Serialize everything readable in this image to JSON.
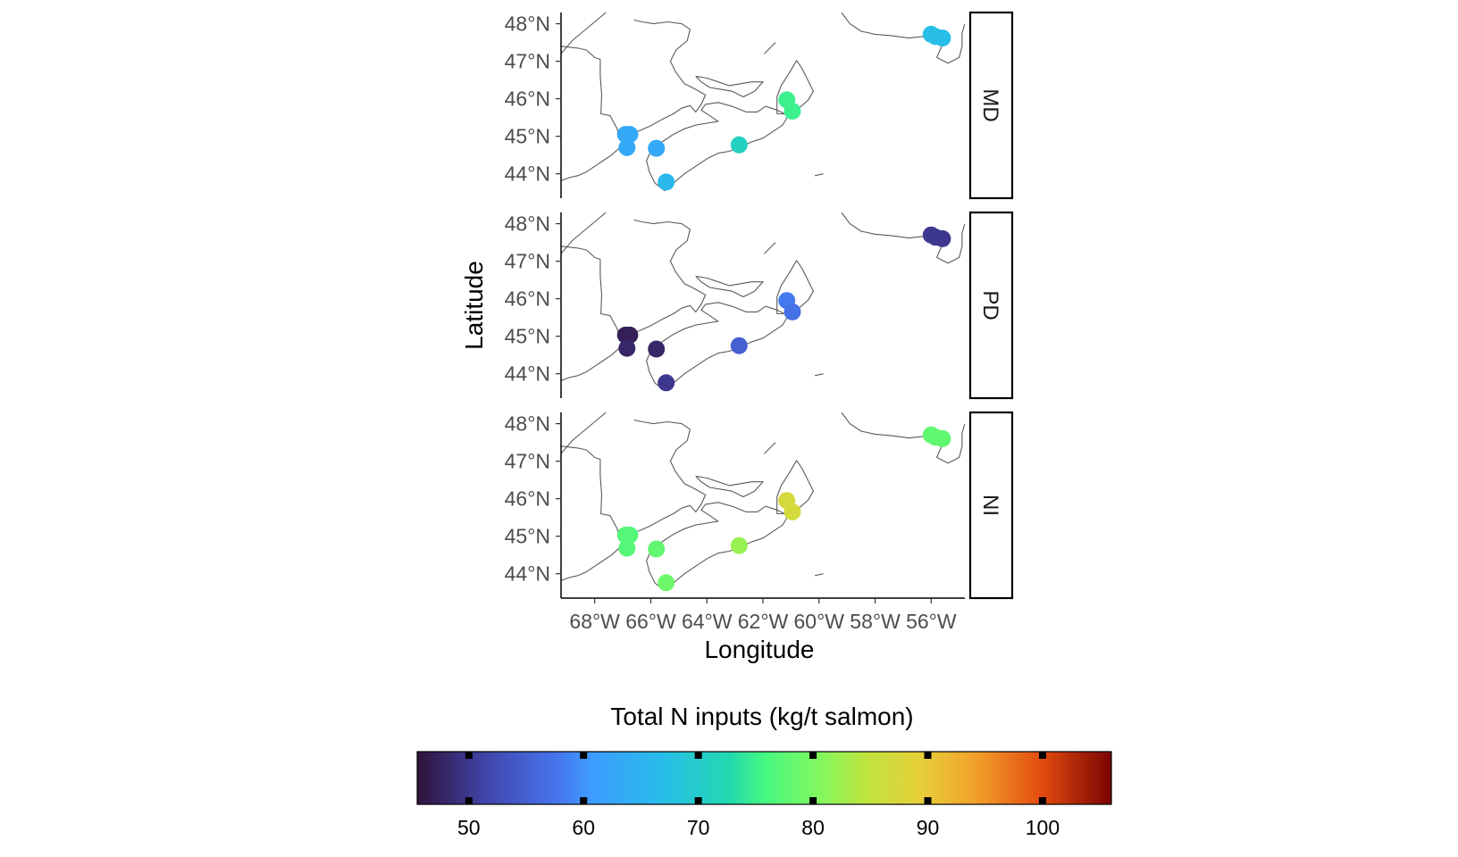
{
  "chart_data": {
    "type": "scatter",
    "subtype": "faceted-map",
    "xlabel": "Longitude",
    "ylabel": "Latitude",
    "xlim": [
      -69.2,
      -54.8
    ],
    "ylim": [
      43.35,
      48.3
    ],
    "x_ticks": [
      -68,
      -66,
      -64,
      -62,
      -60,
      -58,
      -56
    ],
    "x_tick_labels": [
      "68°W",
      "66°W",
      "64°W",
      "62°W",
      "60°W",
      "58°W",
      "56°W"
    ],
    "y_ticks": [
      44,
      45,
      46,
      47,
      48
    ],
    "y_tick_labels": [
      "44°N",
      "45°N",
      "46°N",
      "47°N",
      "48°N"
    ],
    "grid": false,
    "facet_layout": "vertical",
    "facets": [
      {
        "label": "MD",
        "points": [
          {
            "lon": -66.9,
            "lat": 45.05,
            "value": 63
          },
          {
            "lon": -66.75,
            "lat": 45.05,
            "value": 63
          },
          {
            "lon": -66.85,
            "lat": 44.7,
            "value": 63
          },
          {
            "lon": -65.8,
            "lat": 44.68,
            "value": 63
          },
          {
            "lon": -65.45,
            "lat": 43.78,
            "value": 66
          },
          {
            "lon": -62.85,
            "lat": 44.77,
            "value": 71
          },
          {
            "lon": -61.15,
            "lat": 45.97,
            "value": 75
          },
          {
            "lon": -60.95,
            "lat": 45.67,
            "value": 75
          },
          {
            "lon": -56.0,
            "lat": 47.72,
            "value": 67
          },
          {
            "lon": -55.85,
            "lat": 47.66,
            "value": 67
          },
          {
            "lon": -55.6,
            "lat": 47.62,
            "value": 67
          }
        ]
      },
      {
        "label": "PD",
        "points": [
          {
            "lon": -66.9,
            "lat": 45.03,
            "value": 47
          },
          {
            "lon": -66.75,
            "lat": 45.03,
            "value": 47
          },
          {
            "lon": -66.85,
            "lat": 44.68,
            "value": 48
          },
          {
            "lon": -65.8,
            "lat": 44.66,
            "value": 48
          },
          {
            "lon": -65.45,
            "lat": 43.76,
            "value": 50
          },
          {
            "lon": -62.85,
            "lat": 44.75,
            "value": 55
          },
          {
            "lon": -61.15,
            "lat": 45.95,
            "value": 58
          },
          {
            "lon": -60.95,
            "lat": 45.65,
            "value": 57
          },
          {
            "lon": -56.0,
            "lat": 47.7,
            "value": 50
          },
          {
            "lon": -55.85,
            "lat": 47.64,
            "value": 50
          },
          {
            "lon": -55.6,
            "lat": 47.6,
            "value": 50
          }
        ]
      },
      {
        "label": "NI",
        "points": [
          {
            "lon": -66.9,
            "lat": 45.03,
            "value": 77
          },
          {
            "lon": -66.75,
            "lat": 45.03,
            "value": 77
          },
          {
            "lon": -66.85,
            "lat": 44.68,
            "value": 77
          },
          {
            "lon": -65.8,
            "lat": 44.66,
            "value": 78
          },
          {
            "lon": -65.45,
            "lat": 43.76,
            "value": 79
          },
          {
            "lon": -62.85,
            "lat": 44.75,
            "value": 82
          },
          {
            "lon": -61.15,
            "lat": 45.95,
            "value": 87
          },
          {
            "lon": -60.95,
            "lat": 45.65,
            "value": 87
          },
          {
            "lon": -56.0,
            "lat": 47.7,
            "value": 78
          },
          {
            "lon": -55.85,
            "lat": 47.64,
            "value": 78
          },
          {
            "lon": -55.6,
            "lat": 47.6,
            "value": 78
          }
        ]
      }
    ],
    "colorbar": {
      "title": "Total N inputs (kg/t salmon)",
      "range": [
        45.5,
        106
      ],
      "ticks": [
        50,
        60,
        70,
        80,
        90,
        100
      ],
      "tick_labels": [
        "50",
        "60",
        "70",
        "80",
        "90",
        "100"
      ],
      "position": "bottom",
      "palette": "turbo"
    }
  },
  "colors": {
    "coastline": "#5a5a5a",
    "strip_border": "#000000",
    "axis_line": "#000000"
  }
}
